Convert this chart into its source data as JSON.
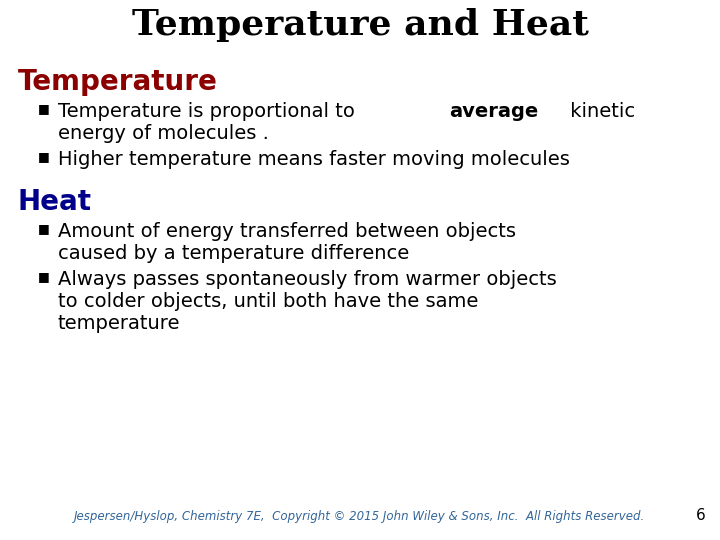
{
  "title": "Temperature and Heat",
  "title_fontsize": 26,
  "title_color": "#000000",
  "bg_color": "#ffffff",
  "section1_label": "Temperature",
  "section1_color": "#8B0000",
  "section1_fontsize": 20,
  "section2_label": "Heat",
  "section2_color": "#00008B",
  "section2_fontsize": 20,
  "bullet_color": "#000000",
  "bullet_fontsize": 14,
  "footer": "Jespersen/Hyslop, Chemistry 7E,  Copyright © 2015 John Wiley & Sons, Inc.  All Rights Reserved.",
  "footer_fontsize": 8.5,
  "footer_color": "#336699",
  "page_number": "6",
  "page_number_color": "#000000",
  "page_number_fontsize": 11
}
